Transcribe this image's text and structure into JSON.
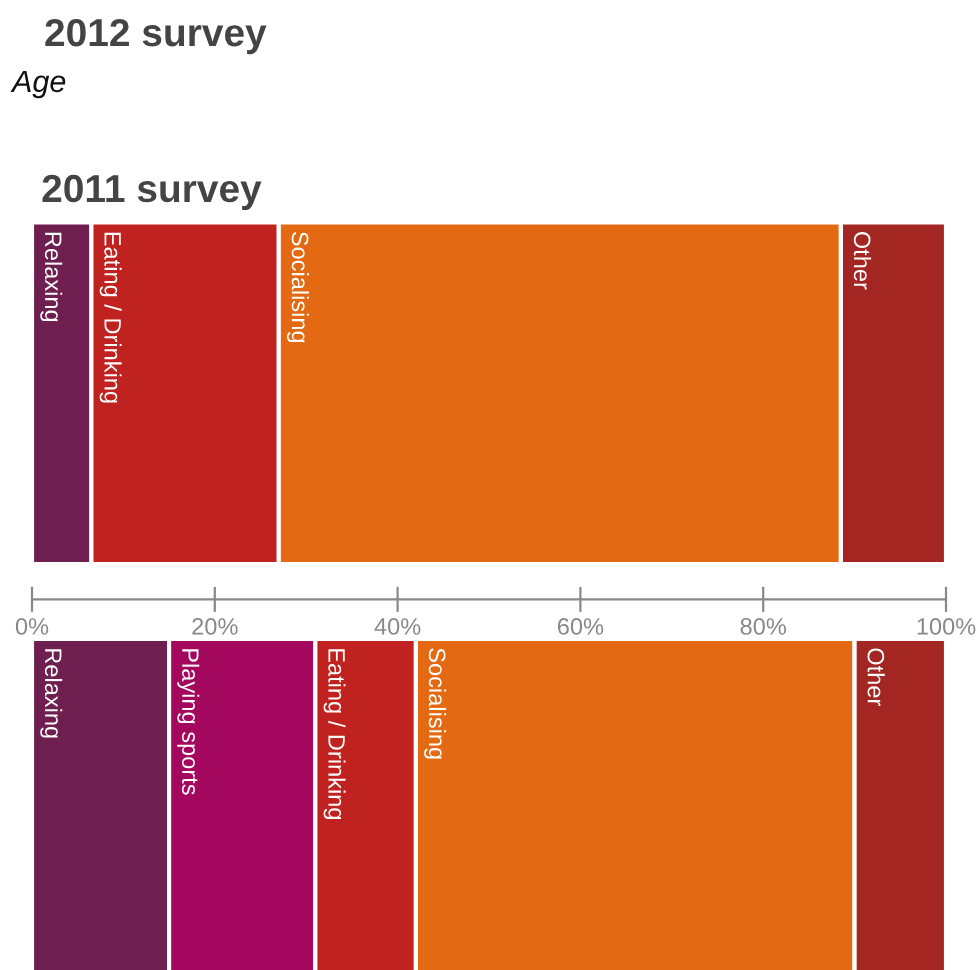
{
  "chart_data": {
    "type": "bar",
    "orientation": "horizontal",
    "stacked": true,
    "title": "2012 survey",
    "subtitle": "Age",
    "categories": [
      "2011 survey",
      null
    ],
    "series": [
      {
        "name": "Relaxing",
        "color": "#6e1f4f",
        "values": [
          6.5,
          15
        ]
      },
      {
        "name": "Playing sports",
        "color": "#a3085e",
        "values": [
          null,
          16
        ]
      },
      {
        "name": "Eating / Drinking",
        "color": "#c0221f",
        "values": [
          20.5,
          11
        ]
      },
      {
        "name": "Socialising",
        "color": "#e36a12",
        "values": [
          61.5,
          48
        ]
      },
      {
        "name": "Other",
        "color": "#a32622",
        "values": [
          11.5,
          10
        ]
      }
    ],
    "xlim": [
      0,
      100
    ],
    "xticks": [
      {
        "value": 0,
        "label": "0%"
      },
      {
        "value": 20,
        "label": "20%"
      },
      {
        "value": 40,
        "label": "40%"
      },
      {
        "value": 60,
        "label": "60%"
      },
      {
        "value": 80,
        "label": "80%"
      },
      {
        "value": 100,
        "label": "100%"
      }
    ],
    "grid": false,
    "legend": false
  }
}
